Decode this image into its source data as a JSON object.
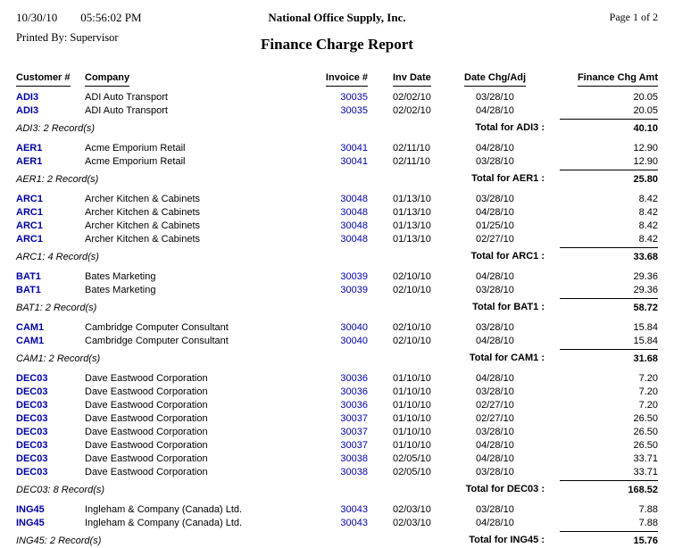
{
  "colors": {
    "link_blue": "#0000A8",
    "text": "#000000",
    "background": "#FFFFFF"
  },
  "header": {
    "date": "10/30/10",
    "time": "05:56:02 PM",
    "company_name": "National Office Supply, Inc.",
    "page_label": "Page 1 of  2",
    "printed_by": "Printed By: Supervisor",
    "report_title": "Finance Charge Report"
  },
  "columns": [
    "Customer #",
    "Company",
    "Invoice #",
    "Inv Date",
    "Date Chg/Adj",
    "Finance Chg Amt"
  ],
  "groups": [
    {
      "customer": "ADI3",
      "company": "ADI Auto Transport",
      "rows": [
        {
          "invoice": "30035",
          "inv_date": "02/02/10",
          "date_chg": "03/28/10",
          "amount": "20.05"
        },
        {
          "invoice": "30035",
          "inv_date": "02/02/10",
          "date_chg": "04/28/10",
          "amount": "20.05"
        }
      ],
      "record_label": "ADI3: 2 Record(s)",
      "total_label": "Total for ADI3 :",
      "total": "40.10"
    },
    {
      "customer": "AER1",
      "company": "Acme Emporium Retail",
      "rows": [
        {
          "invoice": "30041",
          "inv_date": "02/11/10",
          "date_chg": "04/28/10",
          "amount": "12.90"
        },
        {
          "invoice": "30041",
          "inv_date": "02/11/10",
          "date_chg": "03/28/10",
          "amount": "12.90"
        }
      ],
      "record_label": "AER1: 2 Record(s)",
      "total_label": "Total for AER1 :",
      "total": "25.80"
    },
    {
      "customer": "ARC1",
      "company": "Archer Kitchen & Cabinets",
      "rows": [
        {
          "invoice": "30048",
          "inv_date": "01/13/10",
          "date_chg": "03/28/10",
          "amount": "8.42"
        },
        {
          "invoice": "30048",
          "inv_date": "01/13/10",
          "date_chg": "04/28/10",
          "amount": "8.42"
        },
        {
          "invoice": "30048",
          "inv_date": "01/13/10",
          "date_chg": "01/25/10",
          "amount": "8.42"
        },
        {
          "invoice": "30048",
          "inv_date": "01/13/10",
          "date_chg": "02/27/10",
          "amount": "8.42"
        }
      ],
      "record_label": "ARC1: 4 Record(s)",
      "total_label": "Total for ARC1 :",
      "total": "33.68"
    },
    {
      "customer": "BAT1",
      "company": "Bates Marketing",
      "rows": [
        {
          "invoice": "30039",
          "inv_date": "02/10/10",
          "date_chg": "04/28/10",
          "amount": "29.36"
        },
        {
          "invoice": "30039",
          "inv_date": "02/10/10",
          "date_chg": "03/28/10",
          "amount": "29.36"
        }
      ],
      "record_label": "BAT1: 2 Record(s)",
      "total_label": "Total for BAT1 :",
      "total": "58.72"
    },
    {
      "customer": "CAM1",
      "company": "Cambridge Computer Consultant",
      "rows": [
        {
          "invoice": "30040",
          "inv_date": "02/10/10",
          "date_chg": "03/28/10",
          "amount": "15.84"
        },
        {
          "invoice": "30040",
          "inv_date": "02/10/10",
          "date_chg": "04/28/10",
          "amount": "15.84"
        }
      ],
      "record_label": "CAM1: 2 Record(s)",
      "total_label": "Total for CAM1 :",
      "total": "31.68"
    },
    {
      "customer": "DEC03",
      "company": "Dave Eastwood Corporation",
      "rows": [
        {
          "invoice": "30036",
          "inv_date": "01/10/10",
          "date_chg": "04/28/10",
          "amount": "7.20"
        },
        {
          "invoice": "30036",
          "inv_date": "01/10/10",
          "date_chg": "03/28/10",
          "amount": "7.20"
        },
        {
          "invoice": "30036",
          "inv_date": "01/10/10",
          "date_chg": "02/27/10",
          "amount": "7.20"
        },
        {
          "invoice": "30037",
          "inv_date": "01/10/10",
          "date_chg": "02/27/10",
          "amount": "26.50"
        },
        {
          "invoice": "30037",
          "inv_date": "01/10/10",
          "date_chg": "03/28/10",
          "amount": "26.50"
        },
        {
          "invoice": "30037",
          "inv_date": "01/10/10",
          "date_chg": "04/28/10",
          "amount": "26.50"
        },
        {
          "invoice": "30038",
          "inv_date": "02/05/10",
          "date_chg": "04/28/10",
          "amount": "33.71"
        },
        {
          "invoice": "30038",
          "inv_date": "02/05/10",
          "date_chg": "03/28/10",
          "amount": "33.71"
        }
      ],
      "record_label": "DEC03: 8 Record(s)",
      "total_label": "Total for DEC03 :",
      "total": "168.52"
    },
    {
      "customer": "ING45",
      "company": "Ingleham & Company (Canada) Ltd.",
      "rows": [
        {
          "invoice": "30043",
          "inv_date": "02/03/10",
          "date_chg": "03/28/10",
          "amount": "7.88"
        },
        {
          "invoice": "30043",
          "inv_date": "02/03/10",
          "date_chg": "04/28/10",
          "amount": "7.88"
        }
      ],
      "record_label": "ING45: 2 Record(s)",
      "total_label": "Total for ING45 :",
      "total": "15.76"
    }
  ]
}
